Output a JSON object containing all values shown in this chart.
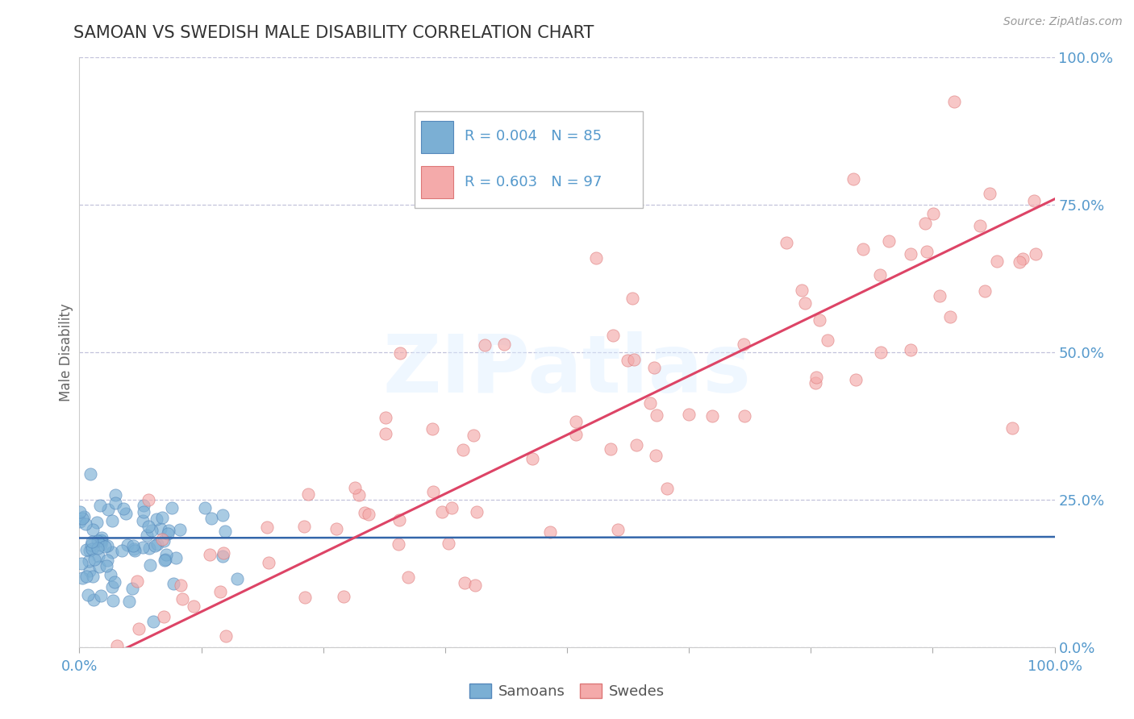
{
  "title": "SAMOAN VS SWEDISH MALE DISABILITY CORRELATION CHART",
  "source_text": "Source: ZipAtlas.com",
  "ylabel": "Male Disability",
  "watermark": "ZIPatlas",
  "xlim": [
    0.0,
    1.0
  ],
  "ylim": [
    0.0,
    1.0
  ],
  "ytick_labels": [
    "0.0%",
    "25.0%",
    "50.0%",
    "75.0%",
    "100.0%"
  ],
  "ytick_values": [
    0.0,
    0.25,
    0.5,
    0.75,
    1.0
  ],
  "samoan_color": "#7BAFD4",
  "samoan_edge_color": "#5588BB",
  "swede_color": "#F4AAAA",
  "swede_edge_color": "#DD7777",
  "samoan_trend_color": "#3366AA",
  "swede_trend_color": "#DD4466",
  "samoan_R": 0.004,
  "samoan_N": 85,
  "swede_R": 0.603,
  "swede_N": 97,
  "legend_label_samoan": "Samoans",
  "legend_label_swede": "Swedes",
  "title_color": "#333333",
  "axis_tick_color": "#5599CC",
  "grid_color": "#AAAACC",
  "background_color": "#FFFFFF",
  "legend_text_color": "#5599CC",
  "samoan_trend_intercept": 0.185,
  "samoan_trend_slope": 0.002,
  "swede_trend_intercept": -0.04,
  "swede_trend_slope": 0.8
}
